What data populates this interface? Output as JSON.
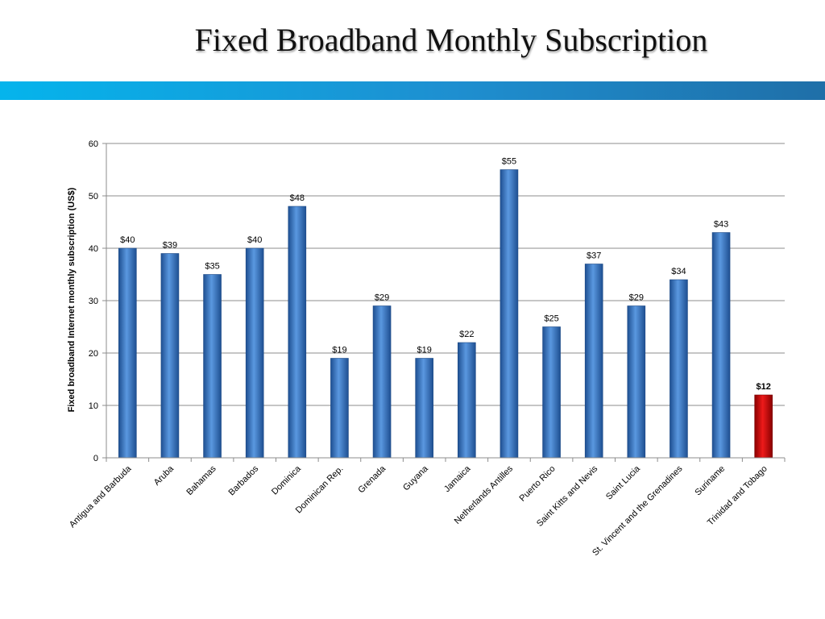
{
  "slide": {
    "title": "Fixed Broadband Monthly Subscription"
  },
  "chart_data": {
    "type": "bar",
    "title": "",
    "xlabel": "",
    "ylabel": "Fixed broadband Internet monthly subscription (US$)",
    "ylim": [
      0,
      60
    ],
    "yticks": [
      0,
      10,
      20,
      30,
      40,
      50,
      60
    ],
    "grid": true,
    "legend": "none",
    "categories": [
      "Antigua and Barbuda",
      "Aruba",
      "Bahamas",
      "Barbados",
      "Dominica",
      "Dominican Rep.",
      "Grenada",
      "Guyana",
      "Jamaica",
      "Netherlands Antilles",
      "Puerto Rico",
      "Saint Kitts and Nevis",
      "Saint Lucia",
      "St. Vincent and the Grenadines",
      "Suriname",
      "Trinidad and Tobago"
    ],
    "values": [
      40,
      39,
      35,
      40,
      48,
      19,
      29,
      19,
      22,
      55,
      25,
      37,
      29,
      34,
      43,
      12
    ],
    "data_labels": [
      "$40",
      "$39",
      "$35",
      "$40",
      "$48",
      "$19",
      "$29",
      "$19",
      "$22",
      "$55",
      "$25",
      "$37",
      "$29",
      "$34",
      "$43",
      "$12"
    ],
    "highlight_category": "Trinidad and Tobago",
    "colors": {
      "bar": "#3a7cc7",
      "highlight": "#cc0000"
    }
  }
}
